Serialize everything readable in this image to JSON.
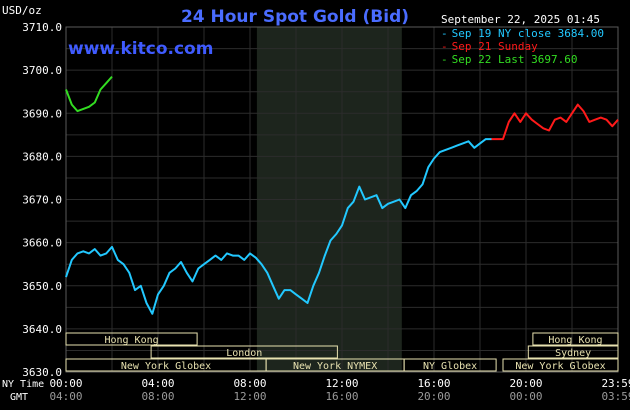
{
  "colors": {
    "background": "#000000",
    "title": "#4a6cff",
    "site": "#3f5bff",
    "text": "#ffffff",
    "muted": "#9a9a9a",
    "grid": "#2c2c2c",
    "shade": "#1d251d",
    "session_fill": "#e8e2b0",
    "session_text": "#111111",
    "ny_close": "#22c8ff",
    "sunday": "#ff1a1a",
    "last": "#33dd22"
  },
  "header": {
    "unit": "USD/oz",
    "title": "24 Hour Spot Gold (Bid)",
    "site": "www.kitco.com",
    "timestamp": "September 22, 2025 01:45"
  },
  "legend": [
    {
      "mark": "-",
      "text": "Sep 19 NY close 3684.00",
      "color": "#22c8ff"
    },
    {
      "mark": "-",
      "text": "Sep 21 Sunday",
      "color": "#ff1a1a"
    },
    {
      "mark": "-",
      "text": "Sep 22 Last 3697.60",
      "color": "#33dd22"
    }
  ],
  "axes": {
    "row_label_ny": "NY Time",
    "row_label_gmt": "GMT",
    "x_ticks_ny": [
      "00:00",
      "04:00",
      "08:00",
      "12:00",
      "16:00",
      "20:00",
      "23:59"
    ],
    "x_ticks_gmt": [
      "04:00",
      "08:00",
      "12:00",
      "16:00",
      "20:00",
      "00:00",
      "03:59"
    ],
    "y_ticks": [
      "3710.0",
      "3700.0",
      "3690.0",
      "3680.0",
      "3670.0",
      "3660.0",
      "3650.0",
      "3640.0",
      "3630.0"
    ]
  },
  "sessions": [
    {
      "label": "Hong Kong",
      "start": 0.0,
      "end": 5.7,
      "row": 0
    },
    {
      "label": "London",
      "start": 3.7,
      "end": 11.8,
      "row": 1
    },
    {
      "label": "New York Globex",
      "start": 0.0,
      "end": 8.7,
      "row": 2
    },
    {
      "label": "New York NYMEX",
      "start": 8.7,
      "end": 14.7,
      "row": 2
    },
    {
      "label": "NY Globex",
      "start": 14.7,
      "end": 18.7,
      "row": 2
    },
    {
      "label": "Hong Kong",
      "start": 20.3,
      "end": 24.0,
      "row": 0
    },
    {
      "label": "Sydney",
      "start": 20.1,
      "end": 24.0,
      "row": 1
    },
    {
      "label": "New York Globex",
      "start": 19.0,
      "end": 24.0,
      "row": 2
    }
  ],
  "chart_data": {
    "type": "line",
    "title": "24 Hour Spot Gold (Bid)",
    "ylabel": "USD/oz",
    "xlabel": "NY Time",
    "xlim": [
      0,
      24
    ],
    "ylim": [
      3630,
      3710
    ],
    "grid": true,
    "legend_position": "top-right",
    "shaded_range_hours": [
      8.3,
      14.6
    ],
    "series": [
      {
        "name": "Sep 19 NY close 3684.00",
        "color": "#22c8ff",
        "x": [
          0.0,
          0.25,
          0.5,
          0.75,
          1.0,
          1.25,
          1.5,
          1.75,
          2.0,
          2.25,
          2.5,
          2.75,
          3.0,
          3.25,
          3.5,
          3.75,
          4.0,
          4.25,
          4.5,
          4.75,
          5.0,
          5.25,
          5.5,
          5.75,
          6.0,
          6.25,
          6.5,
          6.75,
          7.0,
          7.25,
          7.5,
          7.75,
          8.0,
          8.25,
          8.5,
          8.75,
          9.0,
          9.25,
          9.5,
          9.75,
          10.0,
          10.25,
          10.5,
          10.75,
          11.0,
          11.25,
          11.5,
          11.75,
          12.0,
          12.25,
          12.5,
          12.75,
          13.0,
          13.25,
          13.5,
          13.75,
          14.0,
          14.25,
          14.5,
          14.75,
          15.0,
          15.25,
          15.5,
          15.75,
          16.0,
          16.25,
          16.5,
          16.75,
          17.0,
          17.25,
          17.5,
          17.75,
          18.0,
          18.25,
          18.5
        ],
        "y": [
          3652.0,
          3656.0,
          3657.5,
          3658.0,
          3657.5,
          3658.5,
          3657.0,
          3657.5,
          3659.0,
          3656.0,
          3655.0,
          3653.0,
          3649.0,
          3650.0,
          3646.0,
          3643.5,
          3648.0,
          3650.0,
          3653.0,
          3654.0,
          3655.5,
          3653.0,
          3651.0,
          3654.0,
          3655.0,
          3656.0,
          3657.0,
          3656.0,
          3657.5,
          3657.0,
          3657.0,
          3656.0,
          3657.5,
          3656.5,
          3655.0,
          3653.0,
          3650.0,
          3647.0,
          3649.0,
          3649.0,
          3648.0,
          3647.0,
          3646.0,
          3650.0,
          3653.0,
          3657.0,
          3660.5,
          3662.0,
          3664.0,
          3668.0,
          3669.5,
          3673.0,
          3670.0,
          3670.5,
          3671.0,
          3668.0,
          3669.0,
          3669.5,
          3670.0,
          3668.0,
          3671.0,
          3672.0,
          3673.5,
          3677.5,
          3679.5,
          3681.0,
          3681.5,
          3682.0,
          3682.5,
          3683.0,
          3683.5,
          3682.0,
          3683.0,
          3684.0,
          3684.0
        ]
      },
      {
        "name": "Sep 21 Sunday",
        "color": "#ff1a1a",
        "x": [
          18.5,
          19.0,
          19.25,
          19.5,
          19.75,
          20.0,
          20.25,
          20.5,
          20.75,
          21.0,
          21.25,
          21.5,
          21.75,
          22.0,
          22.25,
          22.5,
          22.75,
          23.0,
          23.25,
          23.5,
          23.75,
          24.0
        ],
        "y": [
          3684.0,
          3684.0,
          3688.0,
          3690.0,
          3688.0,
          3690.0,
          3688.5,
          3687.5,
          3686.5,
          3686.0,
          3688.5,
          3689.0,
          3688.0,
          3690.0,
          3692.0,
          3690.5,
          3688.0,
          3688.5,
          3689.0,
          3688.5,
          3687.0,
          3688.5
        ]
      },
      {
        "name": "Sep 22 Last 3697.60",
        "color": "#33dd22",
        "x": [
          0.0,
          0.25,
          0.5,
          0.75,
          1.0,
          1.25,
          1.5,
          1.75,
          2.0
        ],
        "y": [
          3695.5,
          3692.0,
          3690.5,
          3691.0,
          3691.5,
          3692.5,
          3695.5,
          3697.0,
          3698.5
        ]
      }
    ]
  }
}
